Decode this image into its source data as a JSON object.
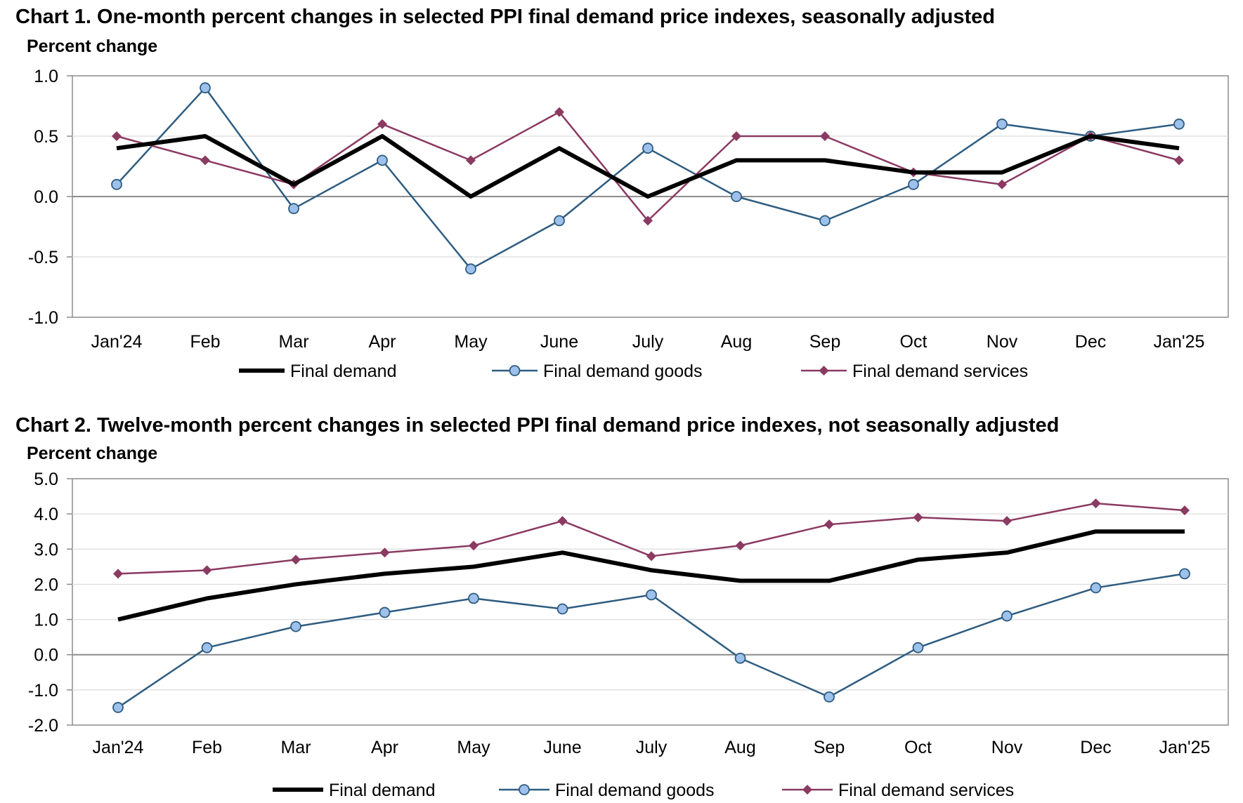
{
  "chart_data": [
    {
      "type": "line",
      "title": "Chart 1. One-month percent changes in selected PPI final demand price indexes, seasonally adjusted",
      "ylabel": "Percent change",
      "xlabel": "",
      "categories": [
        "Jan'24",
        "Feb",
        "Mar",
        "Apr",
        "May",
        "June",
        "July",
        "Aug",
        "Sep",
        "Oct",
        "Nov",
        "Dec",
        "Jan'25"
      ],
      "ylim": [
        -1.0,
        1.0
      ],
      "yticks": [
        "1.0",
        "0.5",
        "0.0",
        "-0.5",
        "-1.0"
      ],
      "ytick_values": [
        1.0,
        0.5,
        0.0,
        -0.5,
        -1.0
      ],
      "grid": true,
      "legend_position": "bottom",
      "series": [
        {
          "name": "Final demand",
          "color": "#000000",
          "marker": "none",
          "values": [
            0.4,
            0.5,
            0.1,
            0.5,
            0.0,
            0.4,
            0.0,
            0.3,
            0.3,
            0.2,
            0.2,
            0.5,
            0.4
          ]
        },
        {
          "name": "Final demand goods",
          "color": "#2e5c80",
          "marker": "circle",
          "values": [
            0.1,
            0.9,
            -0.1,
            0.3,
            -0.6,
            -0.2,
            0.4,
            0.0,
            -0.2,
            0.1,
            0.6,
            0.5,
            0.6
          ]
        },
        {
          "name": "Final demand services",
          "color": "#8b3a62",
          "marker": "diamond",
          "values": [
            0.5,
            0.3,
            0.1,
            0.6,
            0.3,
            0.7,
            -0.2,
            0.5,
            0.5,
            0.2,
            0.1,
            0.5,
            0.3
          ]
        }
      ]
    },
    {
      "type": "line",
      "title": "Chart 2. Twelve-month percent changes in selected PPI final demand price indexes, not seasonally adjusted",
      "ylabel": "Percent change",
      "xlabel": "",
      "categories": [
        "Jan'24",
        "Feb",
        "Mar",
        "Apr",
        "May",
        "June",
        "July",
        "Aug",
        "Sep",
        "Oct",
        "Nov",
        "Dec",
        "Jan'25"
      ],
      "ylim": [
        -2.0,
        5.0
      ],
      "yticks": [
        "5.0",
        "4.0",
        "3.0",
        "2.0",
        "1.0",
        "0.0",
        "-1.0",
        "-2.0"
      ],
      "ytick_values": [
        5.0,
        4.0,
        3.0,
        2.0,
        1.0,
        0.0,
        -1.0,
        -2.0
      ],
      "grid": true,
      "legend_position": "bottom",
      "series": [
        {
          "name": "Final demand",
          "color": "#000000",
          "marker": "none",
          "values": [
            1.0,
            1.6,
            2.0,
            2.3,
            2.5,
            2.9,
            2.4,
            2.1,
            2.1,
            2.7,
            2.9,
            3.5,
            3.5
          ]
        },
        {
          "name": "Final demand goods",
          "color": "#2e5c80",
          "marker": "circle",
          "values": [
            -1.5,
            0.2,
            0.8,
            1.2,
            1.6,
            1.3,
            1.7,
            -0.1,
            -1.2,
            0.2,
            1.1,
            1.9,
            2.3
          ]
        },
        {
          "name": "Final demand services",
          "color": "#8b3a62",
          "marker": "diamond",
          "values": [
            2.3,
            2.4,
            2.7,
            2.9,
            3.1,
            3.8,
            2.8,
            3.1,
            3.7,
            3.9,
            3.8,
            4.3,
            4.1
          ]
        }
      ]
    }
  ]
}
